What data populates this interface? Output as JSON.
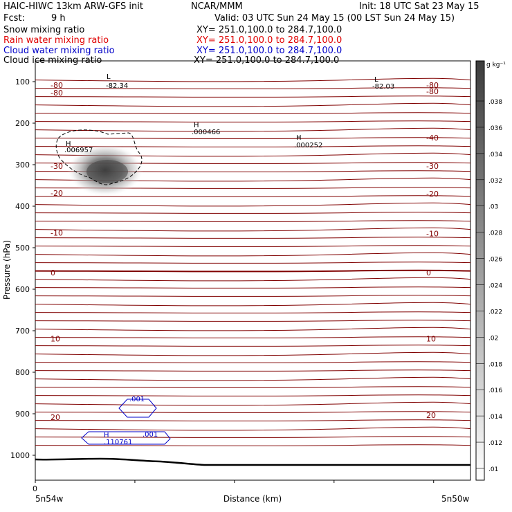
{
  "header": {
    "title_left": "HAIC-HIWC 13km ARW-GFS init",
    "title_center": "NCAR/MMM",
    "init": "Init: 18 UTC Sat 23 May 15",
    "fcst_label": "Fcst:",
    "fcst_value": "9 h",
    "valid": "Valid: 03 UTC Sun 24 May 15 (00 LST Sun 24 May 15)"
  },
  "legend": [
    {
      "label": "Snow mixing ratio",
      "xy": "XY= 251.0,100.0 to 284.7,100.0",
      "color": "#000000"
    },
    {
      "label": "Rain water mixing ratio",
      "xy": "XY= 251.0,100.0 to 284.7,100.0",
      "color": "#e00000"
    },
    {
      "label": "Cloud water mixing ratio",
      "xy": "XY= 251.0,100.0 to 284.7,100.0",
      "color": "#0000c8"
    },
    {
      "label": "Cloud ice mixing ratio",
      "xy": "XY= 251.0,100.0 to 284.7,100.0",
      "color": "#000000"
    }
  ],
  "chart_data": {
    "type": "cross-section",
    "ylabel": "Pressure (hPa)",
    "xlabel": "Distance (km)",
    "y_ticks": [
      100,
      200,
      300,
      400,
      500,
      600,
      700,
      800,
      900,
      1000
    ],
    "x_tick_zero": "0",
    "x_left_label": "5n54w",
    "x_right_label": "5n50w",
    "colorbar_unit": "g kg⁻¹",
    "colorbar_ticks": [
      ".01",
      ".012",
      ".014",
      ".016",
      ".018",
      ".02",
      ".022",
      ".024",
      ".026",
      ".028",
      ".03",
      ".032",
      ".034",
      ".036",
      ".038"
    ],
    "temperature_labels": [
      {
        "text": "-80",
        "side": "left",
        "p": 108
      },
      {
        "text": "-80",
        "side": "left",
        "p": 127
      },
      {
        "text": "-80",
        "side": "right",
        "p": 108
      },
      {
        "text": "-80",
        "side": "right",
        "p": 123
      },
      {
        "text": "-40",
        "side": "right",
        "p": 235
      },
      {
        "text": "-30",
        "side": "left",
        "p": 303
      },
      {
        "text": "-30",
        "side": "right",
        "p": 303
      },
      {
        "text": "-20",
        "side": "left",
        "p": 368
      },
      {
        "text": "-20",
        "side": "right",
        "p": 370
      },
      {
        "text": "-10",
        "side": "left",
        "p": 464
      },
      {
        "text": "-10",
        "side": "right",
        "p": 466
      },
      {
        "text": "0",
        "side": "left",
        "p": 560
      },
      {
        "text": "0",
        "side": "right",
        "p": 560
      },
      {
        "text": "10",
        "side": "left",
        "p": 719
      },
      {
        "text": "10",
        "side": "right",
        "p": 719
      },
      {
        "text": "20",
        "side": "left",
        "p": 908
      },
      {
        "text": "20",
        "side": "right",
        "p": 903
      }
    ],
    "extrema": [
      {
        "kind": "L",
        "value": "-82.34"
      },
      {
        "kind": "L",
        "value": "-82.03"
      },
      {
        "kind": "H",
        "value": ".006957"
      },
      {
        "kind": "H",
        "value": ".000466"
      },
      {
        "kind": "H",
        "value": ".000252"
      },
      {
        "kind": "H",
        "value": ".110761"
      }
    ],
    "cloud_water_contour_labels": [
      ".001",
      ".001"
    ]
  },
  "colors": {
    "isotherm": "#800000",
    "freezing_line": "#800000",
    "cloud_water": "#0000c8",
    "terrain": "#000000"
  }
}
